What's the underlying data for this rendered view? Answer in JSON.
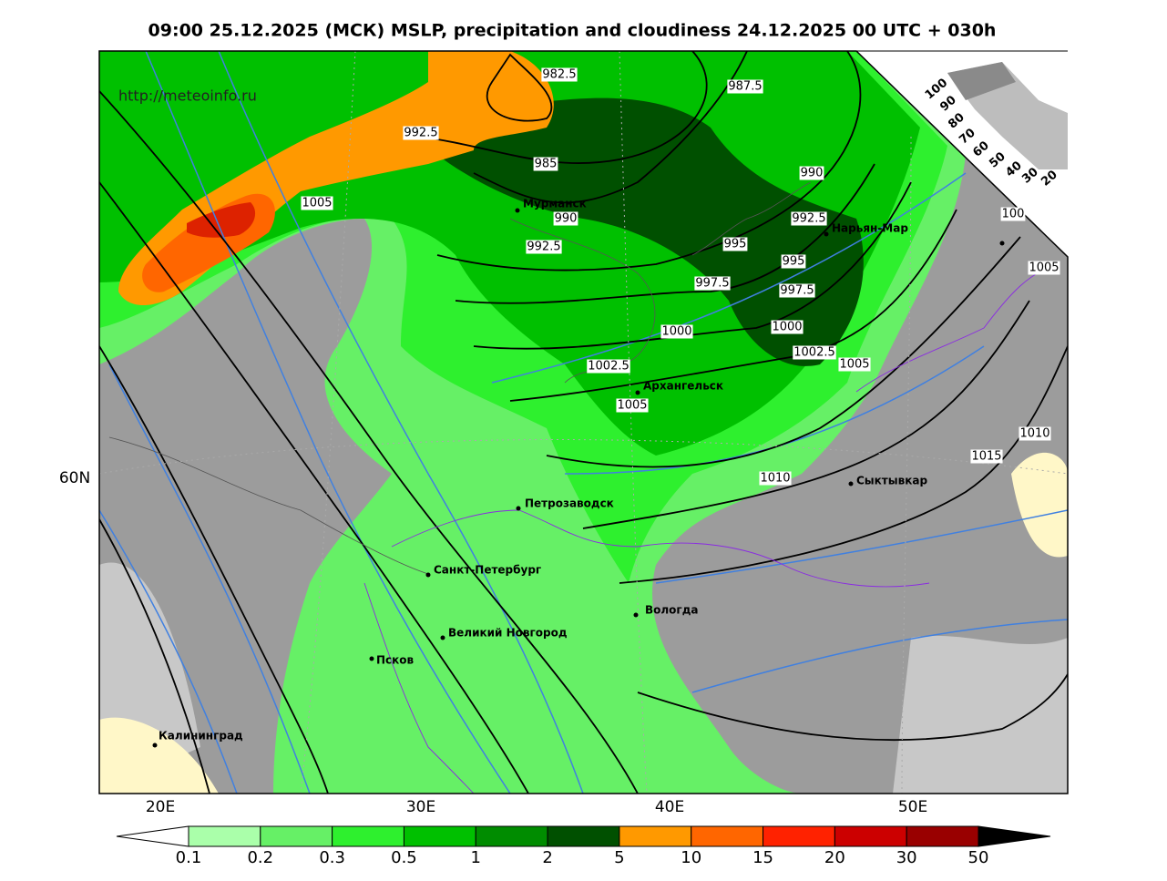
{
  "title": "09:00 25.12.2025 (МСК) MSLP, precipitation and cloudiness 24.12.2025 00 UTC + 030h",
  "source": "http://meteoinfo.ru",
  "cities": [
    "Мурманск",
    "Нарьян-Мар",
    "Архангельск",
    "Петрозаводск",
    "Сыктывкар",
    "Санкт-Петербург",
    "Вологда",
    "Великий Новгород",
    "Псков",
    "Калининград"
  ],
  "isobar_labels": [
    "982.5",
    "987.5",
    "992.5",
    "985",
    "990",
    "1005",
    "990",
    "992.5",
    "992.5",
    "995",
    "995",
    "997.5",
    "997.5",
    "1000",
    "1000",
    "1002.5",
    "1005",
    "1002.5",
    "1005",
    "1010",
    "1015",
    "1010",
    "1005",
    "100"
  ],
  "lat_labels": [
    "60N"
  ],
  "lon_labels": [
    "20E",
    "30E",
    "40E",
    "50E"
  ],
  "inset_labels": [
    "100",
    "90",
    "80",
    "70",
    "60",
    "50",
    "40",
    "30",
    "20"
  ],
  "colorbar": {
    "labels": [
      "0.1",
      "0.2",
      "0.3",
      "0.5",
      "1",
      "2",
      "5",
      "10",
      "15",
      "20",
      "30",
      "50"
    ],
    "colors": [
      "#aaffaa",
      "#66f066",
      "#2ef02e",
      "#00c000",
      "#008c00",
      "#005000",
      "#ff9900",
      "#ff6600",
      "#ff2200",
      "#cc0000",
      "#990000"
    ],
    "under_color": "#ffffff",
    "over_color": "#000000"
  }
}
